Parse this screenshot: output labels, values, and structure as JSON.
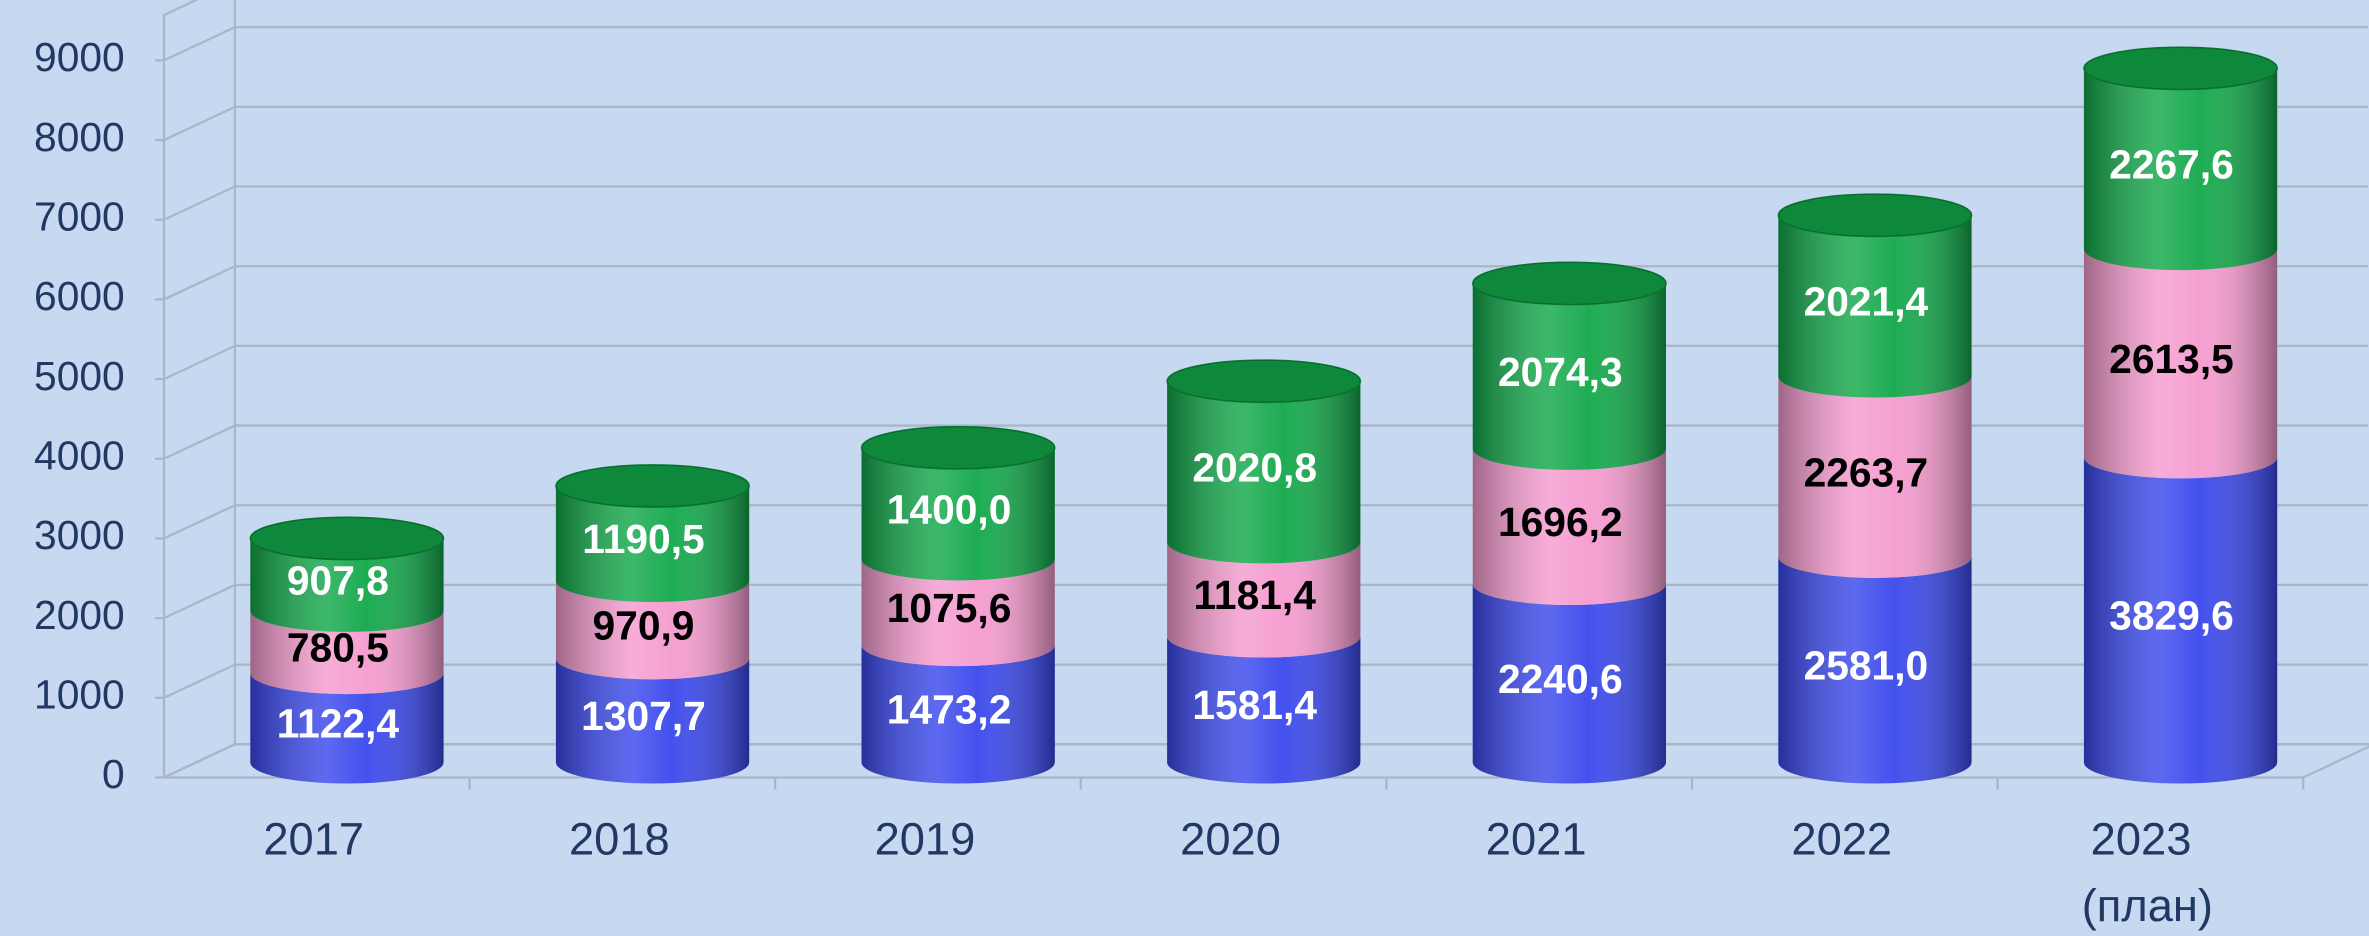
{
  "chart_data": {
    "type": "bar",
    "stacked": true,
    "three_d": true,
    "categories": [
      "2017",
      "2018",
      "2019",
      "2020",
      "2021",
      "2022",
      "2023\n(план)"
    ],
    "series": [
      {
        "color": "#3a48ec",
        "label_color": "#ffffff",
        "values": [
          1122.4,
          1307.7,
          1473.2,
          1581.4,
          2240.6,
          2581.0,
          3829.6
        ],
        "value_labels": [
          "1122,4",
          "1307,7",
          "1473,2",
          "1581,4",
          "2240,6",
          "2581,0",
          "3829,6"
        ]
      },
      {
        "color": "#f59bcf",
        "label_color": "#000000",
        "values": [
          780.5,
          970.9,
          1075.6,
          1181.4,
          1696.2,
          2263.7,
          2613.5
        ],
        "value_labels": [
          "780,5",
          "970,9",
          "1075,6",
          "1181,4",
          "1696,2",
          "2263,7",
          "2613,5"
        ]
      },
      {
        "color": "#12a84a",
        "label_color": "#ffffff",
        "values": [
          907.8,
          1190.5,
          1400.0,
          2020.8,
          2074.3,
          2021.4,
          2267.6
        ],
        "value_labels": [
          "907,8",
          "1190,5",
          "1400,0",
          "2020,8",
          "2074,3",
          "2021,4",
          "2267,6"
        ]
      }
    ],
    "ylim": [
      0,
      9000
    ],
    "yticks": [
      0,
      1000,
      2000,
      3000,
      4000,
      5000,
      6000,
      7000,
      8000,
      9000
    ],
    "grid": true
  }
}
